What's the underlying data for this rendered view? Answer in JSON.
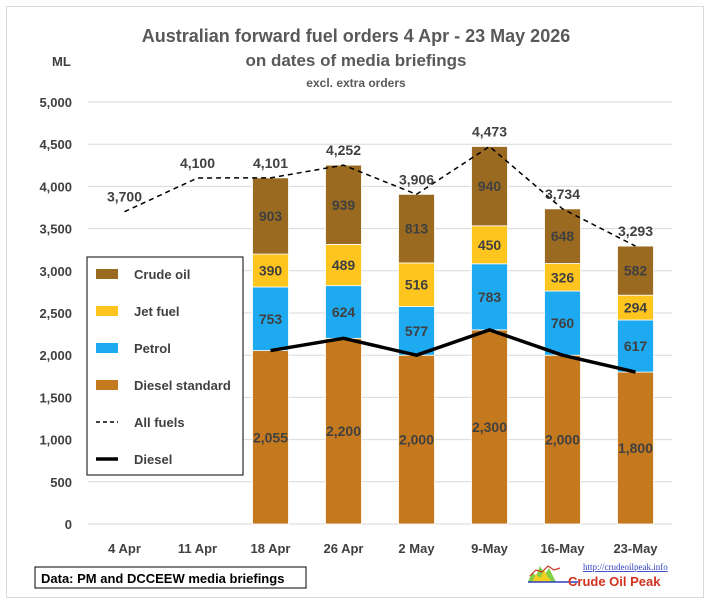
{
  "chart_data": {
    "type": "bar",
    "title": "Australian forward fuel orders 4 Apr - 23 May 2026",
    "subtitle": "on dates of media briefings",
    "note": "excl. extra orders",
    "ylabel": "ML",
    "ylim": [
      0,
      5000
    ],
    "yticks": [
      "0",
      "500",
      "1,000",
      "1,500",
      "2,000",
      "2,500",
      "3,000",
      "3,500",
      "4,000",
      "4,500",
      "5,000"
    ],
    "ytick_values": [
      0,
      500,
      1000,
      1500,
      2000,
      2500,
      3000,
      3500,
      4000,
      4500,
      5000
    ],
    "grid": true,
    "stacked": true,
    "legend_position": "left",
    "categories": [
      "4 Apr",
      "11 Apr",
      "18 Apr",
      "26 Apr",
      "2 May",
      "9-May",
      "16-May",
      "23-May"
    ],
    "series": [
      {
        "name": "Diesel standard",
        "kind": "bar",
        "color": "#c5791f",
        "values": [
          null,
          null,
          2055,
          2200,
          2000,
          2300,
          2000,
          1800
        ],
        "labels": [
          "",
          "",
          "2,055",
          "2,200",
          "2,000",
          "2,300",
          "2,000",
          "1,800"
        ]
      },
      {
        "name": "Petrol",
        "kind": "bar",
        "color": "#1eaaf0",
        "values": [
          null,
          null,
          753,
          624,
          577,
          783,
          760,
          617
        ],
        "labels": [
          "",
          "",
          "753",
          "624",
          "577",
          "783",
          "760",
          "617"
        ]
      },
      {
        "name": "Jet fuel",
        "kind": "bar",
        "color": "#ffc51f",
        "values": [
          null,
          null,
          390,
          489,
          516,
          450,
          326,
          294
        ],
        "labels": [
          "",
          "",
          "390",
          "489",
          "516",
          "450",
          "326",
          "294"
        ]
      },
      {
        "name": "Crude oil",
        "kind": "bar",
        "color": "#9a6a21",
        "values": [
          null,
          null,
          903,
          939,
          813,
          940,
          648,
          582
        ],
        "labels": [
          "",
          "",
          "903",
          "939",
          "813",
          "940",
          "648",
          "582"
        ]
      },
      {
        "name": "All fuels",
        "kind": "line",
        "style": "dashed",
        "color": "#000000",
        "values": [
          3700,
          4100,
          4101,
          4252,
          3906,
          4473,
          3734,
          3293
        ],
        "labels": [
          "3,700",
          "4,100",
          "4,101",
          "4,252",
          "3,906",
          "4,473",
          "3,734",
          "3,293"
        ]
      },
      {
        "name": "Diesel",
        "kind": "line",
        "style": "solid",
        "color": "#000000",
        "values": [
          null,
          null,
          2055,
          2200,
          2000,
          2300,
          2000,
          1800
        ]
      }
    ],
    "legend_order": [
      "Crude oil",
      "Jet fuel",
      "Petrol",
      "Diesel standard",
      "All fuels",
      "Diesel"
    ]
  },
  "source_note": "Data: PM and DCCEEW media briefings",
  "logo": {
    "url": "http://crudeoilpeak.info",
    "name": "Crude Oil Peak"
  }
}
